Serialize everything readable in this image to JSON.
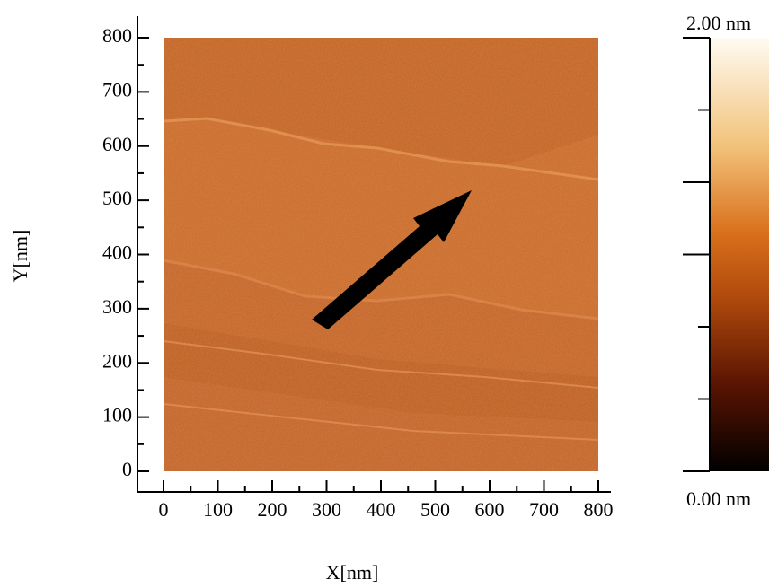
{
  "chart_data": {
    "type": "image",
    "x_label": "X[nm]",
    "y_label": "Y[nm]",
    "xlim": [
      0,
      800
    ],
    "xticks": [
      0,
      100,
      200,
      300,
      400,
      500,
      600,
      700,
      800
    ],
    "ylim": [
      0,
      800
    ],
    "yticks": [
      0,
      100,
      200,
      300,
      400,
      500,
      600,
      700,
      800
    ],
    "colorbar": {
      "clim": [
        0,
        2
      ],
      "ticks": [
        {
          "value": 0,
          "label": "0.00 nm"
        },
        {
          "value": 2,
          "label": "2.00 nm"
        }
      ]
    }
  }
}
